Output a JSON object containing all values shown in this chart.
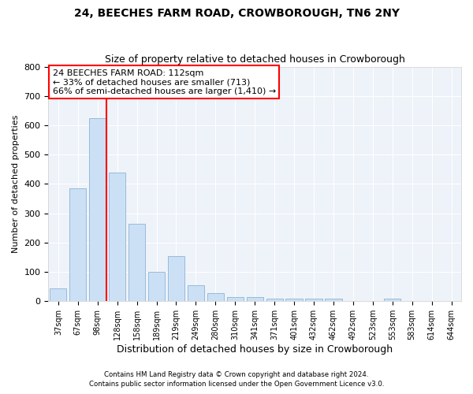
{
  "title": "24, BEECHES FARM ROAD, CROWBOROUGH, TN6 2NY",
  "subtitle": "Size of property relative to detached houses in Crowborough",
  "xlabel": "Distribution of detached houses by size in Crowborough",
  "ylabel": "Number of detached properties",
  "categories": [
    "37sqm",
    "67sqm",
    "98sqm",
    "128sqm",
    "158sqm",
    "189sqm",
    "219sqm",
    "249sqm",
    "280sqm",
    "310sqm",
    "341sqm",
    "371sqm",
    "401sqm",
    "432sqm",
    "462sqm",
    "492sqm",
    "523sqm",
    "553sqm",
    "583sqm",
    "614sqm",
    "644sqm"
  ],
  "values": [
    45,
    385,
    625,
    440,
    265,
    100,
    155,
    55,
    27,
    15,
    15,
    10,
    10,
    10,
    10,
    0,
    0,
    8,
    0,
    0,
    0
  ],
  "bar_color": "#cce0f5",
  "bar_edge_color": "#8ab4d8",
  "annotation_line1": "24 BEECHES FARM ROAD: 112sqm",
  "annotation_line2": "← 33% of detached houses are smaller (713)",
  "annotation_line3": "66% of semi-detached houses are larger (1,410) →",
  "ylim": [
    0,
    800
  ],
  "yticks": [
    0,
    100,
    200,
    300,
    400,
    500,
    600,
    700,
    800
  ],
  "footer1": "Contains HM Land Registry data © Crown copyright and database right 2024.",
  "footer2": "Contains public sector information licensed under the Open Government Licence v3.0.",
  "title_fontsize": 10,
  "subtitle_fontsize": 9,
  "axis_label_fontsize": 8,
  "tick_fontsize": 7,
  "background_color": "#eef2f9"
}
